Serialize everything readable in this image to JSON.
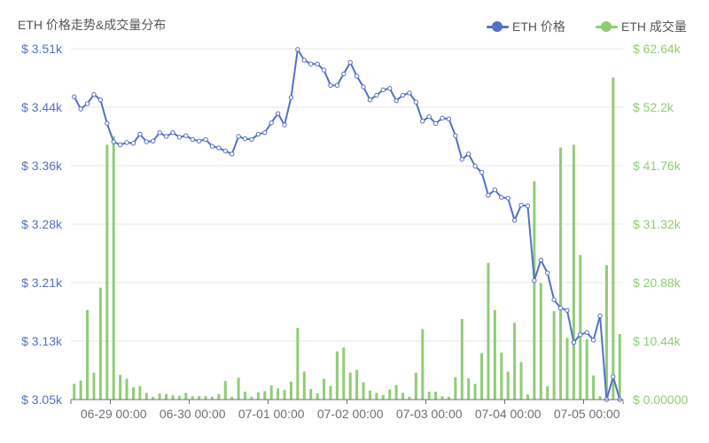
{
  "title": "ETH 价格走势&成交量分布",
  "colors": {
    "price": "#5470c6",
    "volume": "#91cc75",
    "grid": "#e6e6e6",
    "axis": "#6e7079"
  },
  "legend": [
    {
      "label": "ETH 价格",
      "color": "#5470c6"
    },
    {
      "label": "ETH 成交量",
      "color": "#91cc75"
    }
  ],
  "chart_data": {
    "type": "line+bar",
    "title": "ETH 价格走势&成交量分布",
    "x_ticks": [
      "06-29 00:00",
      "06-30 00:00",
      "07-01 00:00",
      "07-02 00:00",
      "07-03 00:00",
      "07-04 00:00",
      "07-05 00:00"
    ],
    "x_start": "06-28 12:00",
    "x_step_hours": 2,
    "y_left": {
      "ticks": [
        "$ 3.05k",
        "$ 3.13k",
        "$ 3.21k",
        "$ 3.28k",
        "$ 3.36k",
        "$ 3.44k",
        "$ 3.51k"
      ],
      "min": 3.05,
      "max": 3.51
    },
    "y_right": {
      "ticks": [
        "$ 0.00000",
        "$ 10.44k",
        "$ 20.88k",
        "$ 31.32k",
        "$ 41.76k",
        "$ 52.2k",
        "$ 62.64k"
      ],
      "min": 0,
      "max": 62.64
    },
    "series": [
      {
        "name": "ETH 价格",
        "axis": "left",
        "values": [
          3.447,
          3.431,
          3.438,
          3.45,
          3.443,
          3.412,
          3.388,
          3.384,
          3.387,
          3.386,
          3.398,
          3.388,
          3.389,
          3.4,
          3.395,
          3.4,
          3.394,
          3.396,
          3.391,
          3.389,
          3.391,
          3.382,
          3.38,
          3.376,
          3.372,
          3.395,
          3.392,
          3.391,
          3.398,
          3.4,
          3.413,
          3.425,
          3.41,
          3.446,
          3.509,
          3.495,
          3.49,
          3.49,
          3.482,
          3.462,
          3.462,
          3.477,
          3.492,
          3.474,
          3.46,
          3.443,
          3.449,
          3.456,
          3.458,
          3.442,
          3.449,
          3.452,
          3.44,
          3.415,
          3.421,
          3.412,
          3.419,
          3.418,
          3.396,
          3.365,
          3.372,
          3.356,
          3.348,
          3.318,
          3.325,
          3.315,
          3.314,
          3.285,
          3.305,
          3.304,
          3.206,
          3.233,
          3.216,
          3.181,
          3.17,
          3.167,
          3.125,
          3.135,
          3.138,
          3.128,
          3.16,
          3.05,
          3.08,
          3.05
        ]
      },
      {
        "name": "ETH 成交量",
        "axis": "right",
        "values": [
          2.8,
          3.4,
          16.0,
          4.8,
          20.0,
          45.5,
          47.0,
          4.4,
          3.7,
          2.2,
          2.4,
          1.2,
          0.5,
          1.1,
          1.0,
          0.8,
          0.7,
          1.2,
          0.6,
          0.6,
          0.6,
          0.5,
          1.0,
          3.3,
          0.5,
          3.9,
          1.4,
          0.5,
          1.3,
          1.5,
          2.5,
          2.0,
          1.7,
          3.2,
          12.8,
          5.0,
          1.9,
          1.1,
          3.7,
          2.4,
          8.6,
          9.3,
          4.8,
          5.3,
          3.1,
          1.6,
          1.2,
          0.8,
          1.8,
          2.6,
          1.2,
          0.5,
          4.8,
          12.6,
          1.4,
          1.4,
          0.6,
          0.5,
          4.0,
          14.4,
          3.8,
          2.8,
          8.3,
          24.4,
          16.0,
          8.4,
          5.0,
          13.7,
          6.7,
          0.9,
          39.0,
          20.8,
          2.4,
          15.8,
          45.0,
          11.0,
          45.5,
          25.8,
          10.8,
          4.3,
          0.6,
          24.0,
          57.5,
          11.7
        ]
      }
    ],
    "grid": true,
    "legend_position": "top-right"
  }
}
